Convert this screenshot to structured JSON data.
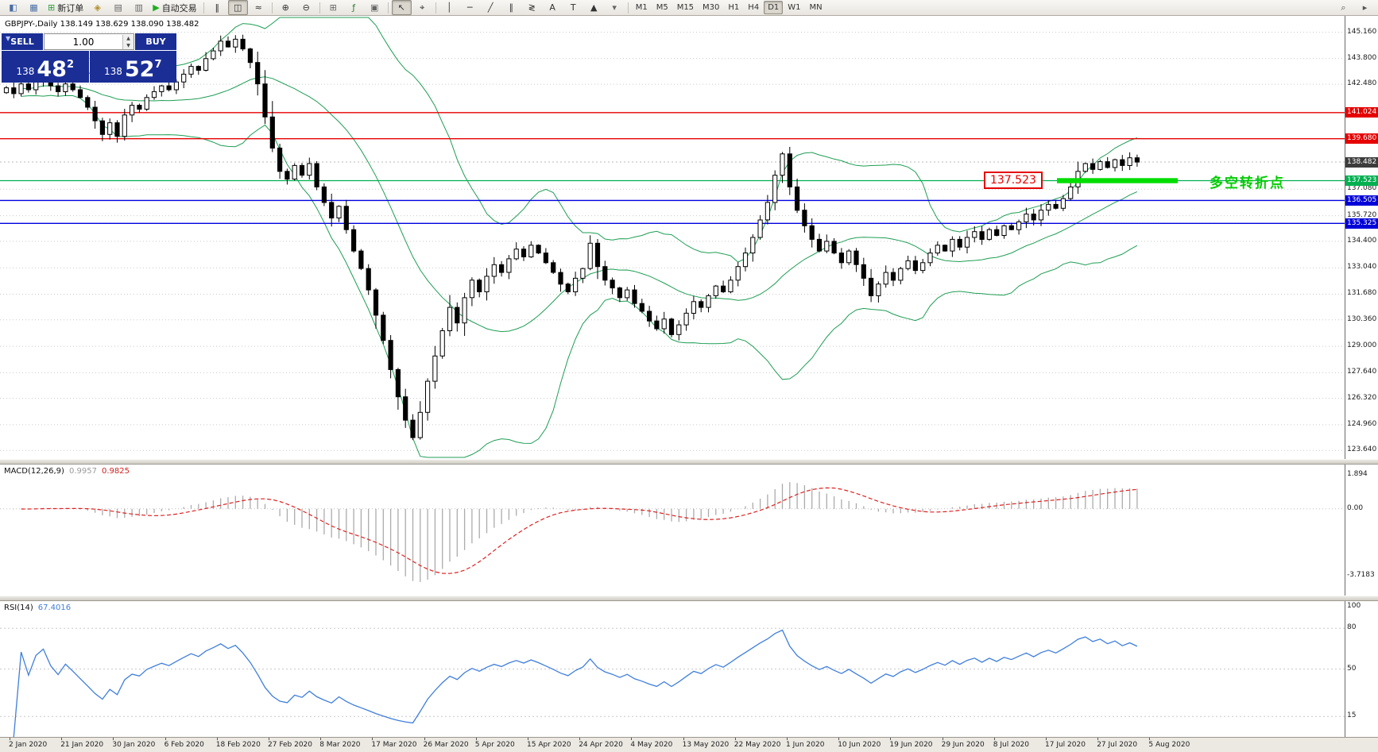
{
  "toolbar": {
    "items": [
      {
        "name": "chart-window",
        "glyph": "◧",
        "color": "#4a6fa5"
      },
      {
        "name": "tile-windows",
        "glyph": "▦",
        "color": "#4a6fa5"
      },
      {
        "name": "new-order",
        "glyph": "⊞",
        "color": "#2f9e3f",
        "label": "新订单"
      },
      {
        "name": "metaeditor",
        "glyph": "◈",
        "color": "#b08f2a"
      },
      {
        "name": "terminal-panel",
        "glyph": "▤",
        "color": "#666666"
      },
      {
        "name": "strategy-tester",
        "glyph": "▥",
        "color": "#666666"
      },
      {
        "name": "autotrading",
        "glyph": "▶",
        "color": "#1fae1f",
        "label": "自动交易"
      },
      {
        "sep": true
      },
      {
        "name": "bar-chart",
        "glyph": "‖",
        "color": "#333333"
      },
      {
        "name": "candlestick-chart",
        "glyph": "◫",
        "color": "#333333",
        "active": true
      },
      {
        "name": "line-chart",
        "glyph": "≈",
        "color": "#333333"
      },
      {
        "sep": true
      },
      {
        "name": "zoom-in",
        "glyph": "⊕",
        "color": "#333333"
      },
      {
        "name": "zoom-out",
        "glyph": "⊖",
        "color": "#333333"
      },
      {
        "sep": true
      },
      {
        "name": "tile-grid",
        "glyph": "⊞",
        "color": "#666666"
      },
      {
        "name": "indicators",
        "glyph": "ƒ",
        "color": "#2f7e2f"
      },
      {
        "name": "templates",
        "glyph": "▣",
        "color": "#666666"
      },
      {
        "sep": true
      },
      {
        "name": "cursor",
        "glyph": "↖",
        "color": "#333333",
        "active": true
      },
      {
        "name": "crosshair",
        "glyph": "⌖",
        "color": "#333333"
      },
      {
        "sep": true
      },
      {
        "name": "vertical-line",
        "glyph": "│",
        "color": "#333333"
      },
      {
        "name": "horizontal-line",
        "glyph": "─",
        "color": "#333333"
      },
      {
        "name": "trendline",
        "glyph": "╱",
        "color": "#333333"
      },
      {
        "name": "channel",
        "glyph": "∥",
        "color": "#333333"
      },
      {
        "name": "fibonacci",
        "glyph": "≷",
        "color": "#333333"
      },
      {
        "name": "text",
        "glyph": "A",
        "color": "#333333"
      },
      {
        "name": "label",
        "glyph": "T",
        "color": "#333333"
      },
      {
        "name": "shapes",
        "glyph": "▲",
        "color": "#333333"
      },
      {
        "name": "shapes-dropdown",
        "glyph": "▾",
        "color": "#666666"
      },
      {
        "sep": true
      }
    ],
    "timeframes": [
      "M1",
      "M5",
      "M15",
      "M30",
      "H1",
      "H4",
      "D1",
      "W1",
      "MN"
    ],
    "active_timeframe": "D1",
    "right_items": [
      {
        "name": "search",
        "glyph": "⌕",
        "color": "#555555"
      },
      {
        "name": "quick-nav",
        "glyph": "▸",
        "color": "#555555"
      }
    ]
  },
  "symbol_bar": "GBPJPY-,Daily 138.149 138.629 138.090 138.482",
  "trade_panel": {
    "sell_label": "SELL",
    "buy_label": "BUY",
    "volume": "1.00",
    "sell_prefix": "138",
    "sell_big": "48",
    "sell_sup": "2",
    "buy_prefix": "138",
    "buy_big": "52",
    "buy_sup": "7"
  },
  "annotation": "多空转折点",
  "level_box": "137.523",
  "levels": {
    "red": [
      141.024,
      139.68
    ],
    "green": 137.523,
    "blue": [
      136.505,
      135.325
    ],
    "current": 138.482
  },
  "main_axis": {
    "plain": [
      [
        "145.160",
        145.16
      ],
      [
        "143.800",
        143.8
      ],
      [
        "142.480",
        142.48
      ],
      [
        "137.080",
        137.08
      ],
      [
        "135.720",
        135.72
      ],
      [
        "134.400",
        134.4
      ],
      [
        "133.040",
        133.04
      ],
      [
        "131.680",
        131.68
      ],
      [
        "130.360",
        130.36
      ],
      [
        "129.000",
        129.0
      ],
      [
        "127.640",
        127.64
      ],
      [
        "126.320",
        126.32
      ],
      [
        "124.960",
        124.96
      ],
      [
        "123.640",
        123.64
      ]
    ],
    "tags": [
      [
        "141.024",
        141.024,
        "#e60000"
      ],
      [
        "139.680",
        139.68,
        "#e60000"
      ],
      [
        "138.482",
        138.482,
        "#3c3c3c"
      ],
      [
        "137.523",
        137.523,
        "#00b050"
      ],
      [
        "136.505",
        136.505,
        "#0000d8"
      ],
      [
        "135.325",
        135.325,
        "#0000d8"
      ]
    ]
  },
  "macd": {
    "title": "MACD(12,26,9)",
    "value_main": "0.9957",
    "value_signal": "0.9825",
    "axis": [
      [
        "1.894",
        1.894
      ],
      [
        "0.00",
        0
      ],
      [
        "-3.7183",
        -3.7183
      ]
    ]
  },
  "rsi": {
    "title": "RSI(14)",
    "value": "67.4016",
    "axis": [
      [
        "100",
        100
      ],
      [
        "80",
        80
      ],
      [
        "50",
        50
      ],
      [
        "15",
        15
      ]
    ],
    "levels": [
      80,
      50,
      15
    ]
  },
  "dates": [
    "2 Jan 2020",
    "21 Jan 2020",
    "30 Jan 2020",
    "6 Feb 2020",
    "18 Feb 2020",
    "27 Feb 2020",
    "8 Mar 2020",
    "17 Mar 2020",
    "26 Mar 2020",
    "5 Apr 2020",
    "15 Apr 2020",
    "24 Apr 2020",
    "4 May 2020",
    "13 May 2020",
    "22 May 2020",
    "1 Jun 2020",
    "10 Jun 2020",
    "19 Jun 2020",
    "29 Jun 2020",
    "8 Jul 2020",
    "17 Jul 2020",
    "27 Jul 2020",
    "5 Aug 2020"
  ],
  "chart_data": {
    "type": "candlestick",
    "symbol": "GBPJPY-",
    "period": "Daily",
    "ohlc_header": "138.149 138.629 138.090 138.482",
    "y_range": [
      123.64,
      145.16
    ],
    "marked_levels": [
      141.024,
      139.68,
      138.482,
      137.523,
      136.505,
      135.325
    ],
    "indicators": [
      {
        "name": "Bollinger Bands"
      },
      {
        "name": "MACD",
        "params": "12,26,9",
        "values": [
          0.9957,
          0.9825
        ]
      },
      {
        "name": "RSI",
        "params": "14",
        "value": 67.4016
      }
    ],
    "closes": [
      142.3,
      142.0,
      142.5,
      142.2,
      142.6,
      142.8,
      142.4,
      142.1,
      142.5,
      142.2,
      141.8,
      141.3,
      140.6,
      139.9,
      140.5,
      139.8,
      140.9,
      141.4,
      141.2,
      141.8,
      142.1,
      142.4,
      142.2,
      142.6,
      143.0,
      143.4,
      143.2,
      143.8,
      144.2,
      144.7,
      144.4,
      144.8,
      144.3,
      143.6,
      142.5,
      140.8,
      139.2,
      138.0,
      137.6,
      138.3,
      137.8,
      138.4,
      137.2,
      136.4,
      135.6,
      136.2,
      135.0,
      133.9,
      133.0,
      131.9,
      130.6,
      129.3,
      127.8,
      126.4,
      125.2,
      124.3,
      125.6,
      127.2,
      128.5,
      129.8,
      131.0,
      130.2,
      131.5,
      132.4,
      131.8,
      132.6,
      133.2,
      132.8,
      133.5,
      134.0,
      133.6,
      134.2,
      133.8,
      133.3,
      132.8,
      132.2,
      131.8,
      132.5,
      133.0,
      134.3,
      133.1,
      132.4,
      132.0,
      131.5,
      131.9,
      131.2,
      130.8,
      130.3,
      129.9,
      130.4,
      129.6,
      130.1,
      130.7,
      131.3,
      131.0,
      131.6,
      132.1,
      131.8,
      132.4,
      133.1,
      133.8,
      134.6,
      135.5,
      136.4,
      137.8,
      138.9,
      137.2,
      136.0,
      135.2,
      134.5,
      133.9,
      134.4,
      133.8,
      133.3,
      133.9,
      133.2,
      132.5,
      131.6,
      132.2,
      132.8,
      132.4,
      133.0,
      133.4,
      132.9,
      133.3,
      133.8,
      134.2,
      133.9,
      134.5,
      134.1,
      134.6,
      134.9,
      134.5,
      135.0,
      134.7,
      135.2,
      135.0,
      135.4,
      135.8,
      135.5,
      136.0,
      136.3,
      136.1,
      136.6,
      137.2,
      138.0,
      138.4,
      138.1,
      138.5,
      138.2,
      138.6,
      138.3,
      138.7,
      138.48
    ]
  }
}
